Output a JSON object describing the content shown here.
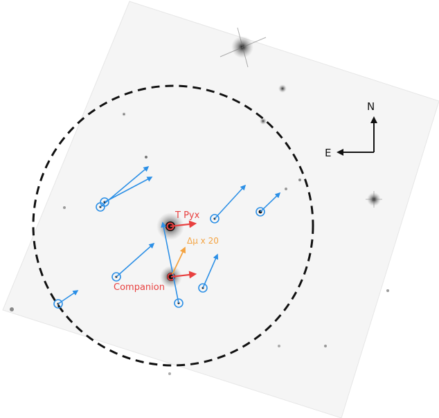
{
  "labels": {
    "target": "T Pyx",
    "companion": "Companion",
    "delta_mu": "Δμ x 20",
    "compass_north": "N",
    "compass_east": "E"
  },
  "colors": {
    "target": "#e8403f",
    "proper_motion": "#2b8fe6",
    "delta_mu": "#f4a340",
    "circle": "#111111",
    "field_background": "#f5f5f5"
  },
  "icons": {
    "compass": "compass-arrows-icon",
    "star_marker": "circled-star-marker-icon"
  }
}
